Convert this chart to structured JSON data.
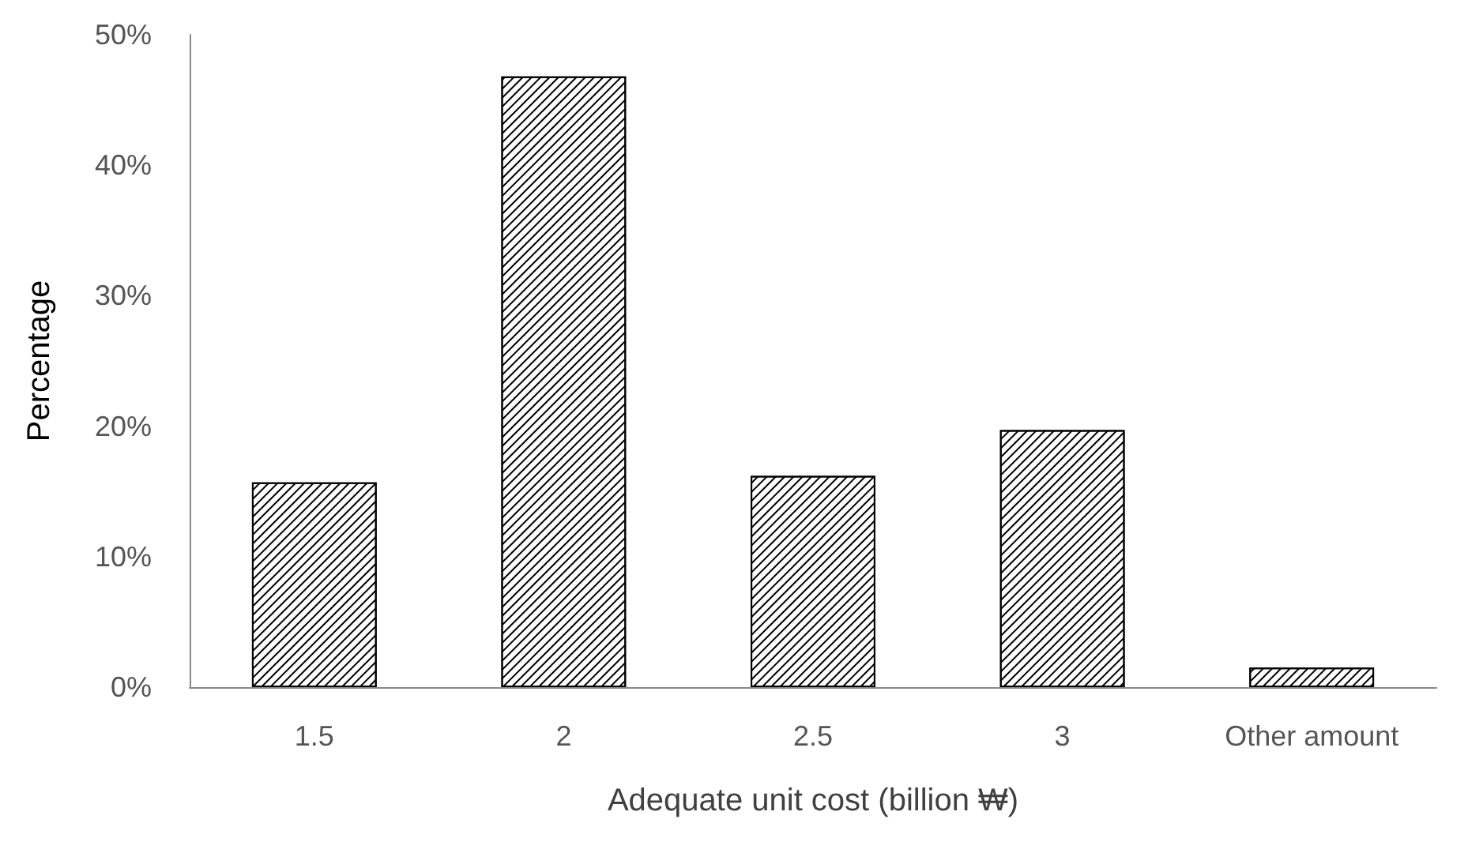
{
  "chart_data": {
    "type": "bar",
    "xlabel": "Adequate unit cost (billion ₩)",
    "ylabel": "Percentage",
    "categories": [
      "1.5",
      "2",
      "2.5",
      "3",
      "Other amount"
    ],
    "values": [
      15.7,
      46.8,
      16.2,
      19.7,
      1.5
    ],
    "color": "#ffffff",
    "ylim": [
      0,
      50
    ],
    "yticks": [
      {
        "value": 0,
        "label": "0%"
      },
      {
        "value": 10,
        "label": "10%"
      },
      {
        "value": 20,
        "label": "20%"
      },
      {
        "value": 30,
        "label": "30%"
      },
      {
        "value": 40,
        "label": "40%"
      },
      {
        "value": 50,
        "label": "50%"
      }
    ],
    "grid": false
  }
}
